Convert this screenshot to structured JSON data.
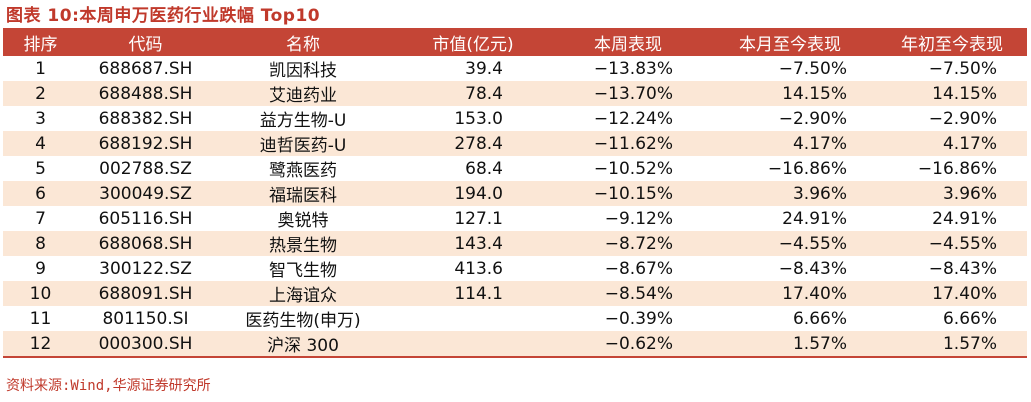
{
  "title": "图表 10:本周申万医药行业跌幅 Top10",
  "headers": [
    "排序",
    "代码",
    "名称",
    "市值(亿元)",
    "本周表现",
    "本月至今表现",
    "年初至今表现"
  ],
  "rows": [
    [
      "1",
      "688687.SH",
      "凯因科技",
      "39.4",
      "−13.83%",
      "−7.50%",
      "−7.50%"
    ],
    [
      "2",
      "688488.SH",
      "艾迪药业",
      "78.4",
      "−13.70%",
      "14.15%",
      "14.15%"
    ],
    [
      "3",
      "688382.SH",
      "益方生物-U",
      "153.0",
      "−12.24%",
      "−2.90%",
      "−2.90%"
    ],
    [
      "4",
      "688192.SH",
      "迪哲医药-U",
      "278.4",
      "−11.62%",
      "4.17%",
      "4.17%"
    ],
    [
      "5",
      "002788.SZ",
      "鹭燕医药",
      "68.4",
      "−10.52%",
      "−16.86%",
      "−16.86%"
    ],
    [
      "6",
      "300049.SZ",
      "福瑞医科",
      "194.0",
      "−10.15%",
      "3.96%",
      "3.96%"
    ],
    [
      "7",
      "605116.SH",
      "奥锐特",
      "127.1",
      "−9.12%",
      "24.91%",
      "24.91%"
    ],
    [
      "8",
      "688068.SH",
      "热景生物",
      "143.4",
      "−8.72%",
      "−4.55%",
      "−4.55%"
    ],
    [
      "9",
      "300122.SZ",
      "智飞生物",
      "413.6",
      "−8.67%",
      "−8.43%",
      "−8.43%"
    ],
    [
      "10",
      "688091.SH",
      "上海谊众",
      "114.1",
      "−8.54%",
      "17.40%",
      "17.40%"
    ],
    [
      "11",
      "801150.SI",
      "医药生物(申万)",
      "",
      "−0.39%",
      "6.66%",
      "6.66%"
    ],
    [
      "12",
      "000300.SH",
      "沪深 300",
      "",
      "−0.62%",
      "1.57%",
      "1.57%"
    ]
  ],
  "source": "资料来源:Wind,华源证券研究所",
  "colors": {
    "header_bg": "#c44536",
    "stripe_bg": "#fbe7d6",
    "title_text": "#c0392b"
  }
}
